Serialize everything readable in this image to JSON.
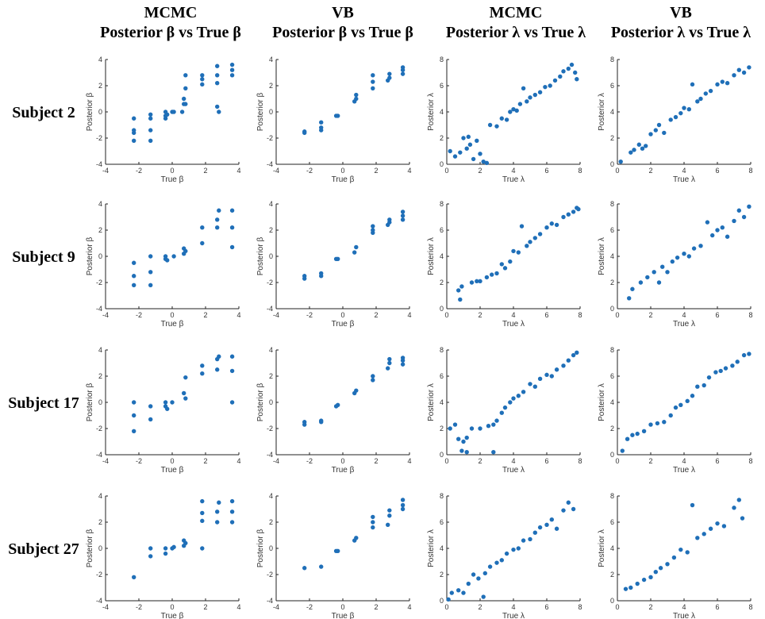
{
  "column_titles": [
    [
      "MCMC",
      "Posterior β vs True β"
    ],
    [
      "VB",
      "Posterior β vs True β"
    ],
    [
      "MCMC",
      "Posterior λ  vs True λ"
    ],
    [
      "VB",
      "Posterior λ  vs True λ"
    ]
  ],
  "row_labels": [
    "Subject 2",
    "Subject 9",
    "Subject 17",
    "Subject 27"
  ],
  "chart_data": [
    {
      "type": "scatter",
      "xlabel": "True β",
      "ylabel": "Posterior β",
      "color": "#1f6fb8",
      "xlim": [
        -4,
        4
      ],
      "ylim": [
        -4,
        4
      ],
      "xticks": [
        -4,
        -2,
        0,
        2,
        4
      ],
      "yticks": [
        -4,
        -2,
        0,
        2,
        4
      ],
      "x": [
        -2.3,
        -2.3,
        -2.3,
        -2.3,
        -1.3,
        -1.3,
        -1.3,
        -1.3,
        -0.4,
        -0.4,
        -0.4,
        -0.3,
        0,
        0.1,
        0.6,
        0.7,
        0.7,
        0.8,
        0.8,
        0.8,
        1.8,
        1.8,
        1.8,
        2.7,
        2.7,
        2.7,
        2.7,
        2.8,
        3.6,
        3.6,
        3.6
      ],
      "values": [
        -0.5,
        -1.4,
        -1.6,
        -2.2,
        -0.2,
        -0.5,
        -1.4,
        -2.2,
        0,
        -0.3,
        -0.5,
        -0.2,
        0,
        0,
        0,
        0.6,
        1,
        0.6,
        1.8,
        2.8,
        2.1,
        2.5,
        2.8,
        0.4,
        2.2,
        2.8,
        3.5,
        0,
        3.2,
        3.6,
        2.8
      ]
    },
    {
      "type": "scatter",
      "xlabel": "True β",
      "ylabel": "Posterior β",
      "color": "#1f6fb8",
      "xlim": [
        -4,
        4
      ],
      "ylim": [
        -4,
        4
      ],
      "xticks": [
        -4,
        -2,
        0,
        2,
        4
      ],
      "yticks": [
        -4,
        -2,
        0,
        2,
        4
      ],
      "x": [
        -2.3,
        -2.3,
        -1.3,
        -1.3,
        -1.3,
        -0.4,
        -0.3,
        0.7,
        0.8,
        0.8,
        1.8,
        1.8,
        1.8,
        2.7,
        2.8,
        2.8,
        3.6,
        3.6,
        3.6
      ],
      "values": [
        -1.5,
        -1.6,
        -0.8,
        -1.2,
        -1.4,
        -0.3,
        -0.3,
        0.8,
        1,
        1.3,
        1.8,
        2.3,
        2.8,
        2.4,
        2.6,
        2.9,
        2.9,
        3.2,
        3.4
      ]
    },
    {
      "type": "scatter",
      "xlabel": "True λ",
      "ylabel": "Posterior λ",
      "color": "#1f6fb8",
      "xlim": [
        0,
        8
      ],
      "ylim": [
        0,
        8
      ],
      "xticks": [
        0,
        2,
        4,
        6,
        8
      ],
      "yticks": [
        0,
        2,
        4,
        6,
        8
      ],
      "x": [
        0.2,
        0.5,
        0.8,
        1,
        1.2,
        1.4,
        1.6,
        1.8,
        2,
        2.2,
        2.4,
        1.3,
        2.6,
        3,
        3.3,
        3.6,
        3.8,
        4,
        4.2,
        4.4,
        4.6,
        4.8,
        5,
        5.3,
        5.6,
        5.9,
        6.2,
        6.5,
        6.8,
        7,
        7.3,
        7.5,
        7.7,
        7.8
      ],
      "values": [
        1,
        0.6,
        0.9,
        2,
        1.2,
        1.5,
        0.4,
        1.8,
        0.8,
        0.2,
        0.1,
        2.1,
        3,
        2.9,
        3.5,
        3.4,
        4,
        4.2,
        4.1,
        4.6,
        5.8,
        4.8,
        5.1,
        5.3,
        5.5,
        5.9,
        6,
        6.4,
        6.7,
        7.1,
        7.3,
        7.6,
        7,
        6.5
      ]
    },
    {
      "type": "scatter",
      "xlabel": "True λ",
      "ylabel": "Posterior λ",
      "color": "#1f6fb8",
      "xlim": [
        0,
        8
      ],
      "ylim": [
        0,
        8
      ],
      "xticks": [
        0,
        2,
        4,
        6,
        8
      ],
      "yticks": [
        0,
        2,
        4,
        6,
        8
      ],
      "x": [
        0.2,
        0.8,
        1,
        1.3,
        1.5,
        1.7,
        2,
        2.3,
        2.5,
        2.8,
        3.2,
        3.5,
        3.8,
        4,
        4.3,
        4.5,
        4.8,
        5,
        5.3,
        5.6,
        6,
        6.3,
        6.6,
        7,
        7.3,
        7.6,
        7.9
      ],
      "values": [
        0.2,
        0.9,
        1.1,
        1.5,
        1.2,
        1.4,
        2.3,
        2.6,
        3,
        2.4,
        3.4,
        3.6,
        3.9,
        4.3,
        4.2,
        6.1,
        4.8,
        5,
        5.4,
        5.6,
        6.1,
        6.3,
        6.2,
        6.8,
        7.2,
        7,
        7.4
      ]
    },
    {
      "type": "scatter",
      "xlabel": "True β",
      "ylabel": "Posterior β",
      "color": "#1f6fb8",
      "xlim": [
        -4,
        4
      ],
      "ylim": [
        -4,
        4
      ],
      "xticks": [
        -4,
        -2,
        0,
        2,
        4
      ],
      "yticks": [
        -4,
        -2,
        0,
        2,
        4
      ],
      "x": [
        -2.3,
        -2.3,
        -2.3,
        -1.3,
        -1.3,
        -1.3,
        -0.4,
        -0.4,
        -0.3,
        0.1,
        0.7,
        0.7,
        0.8,
        1.8,
        1.8,
        2.7,
        2.7,
        2.8,
        3.6,
        3.6,
        3.6
      ],
      "values": [
        -0.5,
        -1.5,
        -2.2,
        0,
        -1.2,
        -2.2,
        0,
        -0.2,
        -0.3,
        0,
        0.2,
        0.6,
        0.4,
        1,
        2.2,
        2.2,
        2.8,
        3.5,
        3.5,
        2.2,
        0.7
      ]
    },
    {
      "type": "scatter",
      "xlabel": "True β",
      "ylabel": "Posterior β",
      "color": "#1f6fb8",
      "xlim": [
        -4,
        4
      ],
      "ylim": [
        -4,
        4
      ],
      "xticks": [
        -4,
        -2,
        0,
        2,
        4
      ],
      "yticks": [
        -4,
        -2,
        0,
        2,
        4
      ],
      "x": [
        -2.3,
        -2.3,
        -1.3,
        -1.3,
        -0.4,
        -0.3,
        0.7,
        0.8,
        1.8,
        1.8,
        1.8,
        2.7,
        2.8,
        2.8,
        3.6,
        3.6,
        3.6
      ],
      "values": [
        -1.5,
        -1.7,
        -1.3,
        -1.5,
        -0.2,
        -0.2,
        0.3,
        0.7,
        1.8,
        2,
        2.3,
        2.4,
        2.6,
        2.8,
        2.8,
        3.1,
        3.4
      ]
    },
    {
      "type": "scatter",
      "xlabel": "True λ",
      "ylabel": "Posterior λ",
      "color": "#1f6fb8",
      "xlim": [
        0,
        8
      ],
      "ylim": [
        0,
        8
      ],
      "xticks": [
        0,
        2,
        4,
        6,
        8
      ],
      "yticks": [
        0,
        2,
        4,
        6,
        8
      ],
      "x": [
        0.7,
        0.8,
        0.9,
        1.5,
        1.8,
        2,
        2.4,
        2.7,
        3,
        3.3,
        3.5,
        3.8,
        4,
        4.3,
        4.5,
        4.8,
        5,
        5.3,
        5.6,
        6,
        6.3,
        6.6,
        7,
        7.3,
        7.6,
        7.8,
        7.9
      ],
      "values": [
        1.4,
        0.7,
        1.7,
        2,
        2.1,
        2.1,
        2.4,
        2.6,
        2.7,
        3.4,
        3.1,
        3.6,
        4.4,
        4.3,
        6.3,
        4.8,
        5.1,
        5.4,
        5.7,
        6.2,
        6.5,
        6.4,
        7,
        7.2,
        7.4,
        7.7,
        7.6
      ]
    },
    {
      "type": "scatter",
      "xlabel": "True λ",
      "ylabel": "Posterior λ",
      "color": "#1f6fb8",
      "xlim": [
        0,
        8
      ],
      "ylim": [
        0,
        8
      ],
      "xticks": [
        0,
        2,
        4,
        6,
        8
      ],
      "yticks": [
        0,
        2,
        4,
        6,
        8
      ],
      "x": [
        0.7,
        0.9,
        1.4,
        1.8,
        2.2,
        2.5,
        2.7,
        3,
        3.3,
        3.6,
        4,
        4.3,
        4.6,
        5,
        5.4,
        5.7,
        6,
        6.3,
        6.6,
        7,
        7.3,
        7.6,
        7.9
      ],
      "values": [
        0.8,
        1.5,
        2,
        2.4,
        2.8,
        2,
        3.2,
        2.8,
        3.6,
        3.9,
        4.2,
        4,
        4.6,
        4.8,
        6.6,
        5.6,
        6,
        6.2,
        5.5,
        6.7,
        7.5,
        7,
        7.8
      ]
    },
    {
      "type": "scatter",
      "xlabel": "True β",
      "ylabel": "Posterior β",
      "color": "#1f6fb8",
      "xlim": [
        -4,
        4
      ],
      "ylim": [
        -4,
        4
      ],
      "xticks": [
        -4,
        -2,
        0,
        2,
        4
      ],
      "yticks": [
        -4,
        -2,
        0,
        2,
        4
      ],
      "x": [
        -2.3,
        -2.3,
        -2.3,
        -1.3,
        -1.3,
        -0.4,
        -0.4,
        -0.3,
        0,
        0.7,
        0.8,
        0.8,
        1.8,
        1.8,
        2.7,
        2.7,
        2.8,
        3.6,
        3.6,
        3.6
      ],
      "values": [
        0,
        -1,
        -2.2,
        -0.3,
        -1.3,
        0,
        -0.3,
        -0.5,
        0,
        0.7,
        1.9,
        0.3,
        2.2,
        2.8,
        2.5,
        3.3,
        3.5,
        3.5,
        2.4,
        0
      ]
    },
    {
      "type": "scatter",
      "xlabel": "True β",
      "ylabel": "Posterior β",
      "color": "#1f6fb8",
      "xlim": [
        -4,
        4
      ],
      "ylim": [
        -4,
        4
      ],
      "xticks": [
        -4,
        -2,
        0,
        2,
        4
      ],
      "yticks": [
        -4,
        -2,
        0,
        2,
        4
      ],
      "x": [
        -2.3,
        -2.3,
        -1.3,
        -1.3,
        -0.4,
        -0.3,
        0.7,
        0.8,
        1.8,
        1.8,
        2.7,
        2.8,
        2.8,
        3.6,
        3.6,
        3.6
      ],
      "values": [
        -1.5,
        -1.7,
        -1.4,
        -1.5,
        -0.3,
        -0.2,
        0.7,
        0.9,
        1.7,
        2,
        2.6,
        3,
        3.3,
        2.9,
        3.2,
        3.4
      ]
    },
    {
      "type": "scatter",
      "xlabel": "True λ",
      "ylabel": "Posterior λ",
      "color": "#1f6fb8",
      "xlim": [
        0,
        8
      ],
      "ylim": [
        0,
        8
      ],
      "xticks": [
        0,
        2,
        4,
        6,
        8
      ],
      "yticks": [
        0,
        2,
        4,
        6,
        8
      ],
      "x": [
        0.2,
        0.5,
        0.7,
        0.9,
        1,
        1.2,
        1.5,
        2,
        2.5,
        2.8,
        3,
        3.3,
        3.5,
        3.8,
        4,
        4.3,
        4.6,
        5,
        5.3,
        5.6,
        6,
        6.3,
        6.6,
        7,
        7.3,
        7.6,
        7.8,
        2.8,
        1.2
      ],
      "values": [
        2,
        2.3,
        1.2,
        0.3,
        1,
        1.3,
        2,
        2,
        2.2,
        2.3,
        2.6,
        3.2,
        3.6,
        4,
        4.3,
        4.5,
        4.8,
        5.4,
        5.2,
        5.8,
        6.1,
        6,
        6.5,
        6.8,
        7.2,
        7.6,
        7.8,
        0.2,
        0.2
      ]
    },
    {
      "type": "scatter",
      "xlabel": "True λ",
      "ylabel": "Posterior λ",
      "color": "#1f6fb8",
      "xlim": [
        0,
        8
      ],
      "ylim": [
        0,
        8
      ],
      "xticks": [
        0,
        2,
        4,
        6,
        8
      ],
      "yticks": [
        0,
        2,
        4,
        6,
        8
      ],
      "x": [
        0.3,
        0.6,
        0.9,
        1.2,
        1.6,
        2,
        2.4,
        2.8,
        3.2,
        3.5,
        3.8,
        4.2,
        4.5,
        4.8,
        5.2,
        5.5,
        5.9,
        6.2,
        6.5,
        6.9,
        7.2,
        7.6,
        7.9
      ],
      "values": [
        0.3,
        1.2,
        1.5,
        1.6,
        1.8,
        2.3,
        2.4,
        2.5,
        3,
        3.6,
        3.8,
        4.1,
        4.5,
        5.2,
        5.3,
        5.9,
        6.3,
        6.4,
        6.6,
        6.8,
        7.1,
        7.6,
        7.7
      ]
    },
    {
      "type": "scatter",
      "xlabel": "True β",
      "ylabel": "Posterior β",
      "color": "#1f6fb8",
      "xlim": [
        -4,
        4
      ],
      "ylim": [
        -4,
        4
      ],
      "xticks": [
        -4,
        -2,
        0,
        2,
        4
      ],
      "yticks": [
        -4,
        -2,
        0,
        2,
        4
      ],
      "x": [
        -2.3,
        -1.3,
        -1.3,
        -0.4,
        -0.4,
        0,
        0.1,
        0.7,
        0.7,
        0.8,
        1.8,
        1.8,
        1.8,
        1.8,
        2.7,
        2.7,
        2.8,
        3.6,
        3.6,
        3.6
      ],
      "values": [
        -2.2,
        0,
        -0.6,
        0,
        -0.4,
        0,
        0.1,
        0.6,
        0.2,
        0.4,
        0,
        2.1,
        2.7,
        3.6,
        2,
        2.8,
        3.5,
        3.6,
        2.8,
        2
      ]
    },
    {
      "type": "scatter",
      "xlabel": "True β",
      "ylabel": "Posterior β",
      "color": "#1f6fb8",
      "xlim": [
        -4,
        4
      ],
      "ylim": [
        -4,
        4
      ],
      "xticks": [
        -4,
        -2,
        0,
        2,
        4
      ],
      "yticks": [
        -4,
        -2,
        0,
        2,
        4
      ],
      "x": [
        -2.3,
        -1.3,
        -0.4,
        -0.3,
        0.7,
        0.8,
        1.8,
        1.8,
        1.8,
        2.7,
        2.8,
        2.8,
        3.6,
        3.6,
        3.6
      ],
      "values": [
        -1.5,
        -1.4,
        -0.2,
        -0.2,
        0.6,
        0.8,
        1.6,
        2,
        2.4,
        1.8,
        2.5,
        2.9,
        3,
        3.3,
        3.7
      ]
    },
    {
      "type": "scatter",
      "xlabel": "True λ",
      "ylabel": "Posterior λ",
      "color": "#1f6fb8",
      "xlim": [
        0,
        8
      ],
      "ylim": [
        0,
        8
      ],
      "xticks": [
        0,
        2,
        4,
        6,
        8
      ],
      "yticks": [
        0,
        2,
        4,
        6,
        8
      ],
      "x": [
        0.1,
        0.3,
        0.7,
        1,
        1.3,
        1.6,
        1.9,
        2.3,
        2.6,
        2.2,
        3,
        3.3,
        3.6,
        4,
        4.3,
        4.6,
        5,
        5.3,
        5.6,
        6,
        6.3,
        6.6,
        7,
        7.3,
        7.6
      ],
      "values": [
        0.1,
        0.6,
        0.8,
        0.6,
        1.3,
        2,
        1.7,
        2.1,
        2.6,
        0.3,
        2.9,
        3.1,
        3.6,
        3.9,
        4,
        4.6,
        4.7,
        5.2,
        5.6,
        5.8,
        6.2,
        5.5,
        6.9,
        7.5,
        7
      ]
    },
    {
      "type": "scatter",
      "xlabel": "True λ",
      "ylabel": "Posterior λ",
      "color": "#1f6fb8",
      "xlim": [
        0,
        8
      ],
      "ylim": [
        0,
        8
      ],
      "xticks": [
        0,
        2,
        4,
        6,
        8
      ],
      "yticks": [
        0,
        2,
        4,
        6,
        8
      ],
      "x": [
        0.5,
        0.8,
        1.2,
        1.6,
        2,
        2.3,
        2.6,
        3,
        3.4,
        3.8,
        4.2,
        4.5,
        4.8,
        5.2,
        5.6,
        6,
        6.4,
        7,
        7.3,
        7.5
      ],
      "values": [
        0.9,
        1,
        1.3,
        1.6,
        1.8,
        2.2,
        2.5,
        2.8,
        3.3,
        3.9,
        3.7,
        7.3,
        4.8,
        5.1,
        5.5,
        5.9,
        5.7,
        7.1,
        7.7,
        6.3
      ]
    }
  ]
}
